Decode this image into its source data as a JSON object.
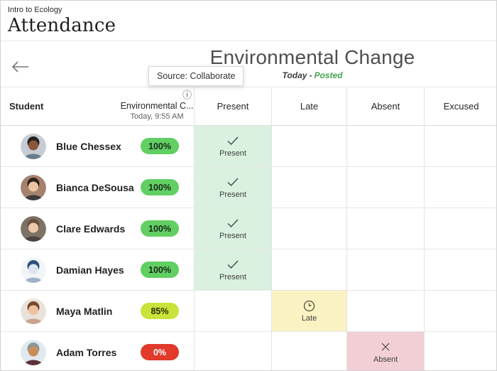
{
  "page": {
    "course": "Intro to Ecology",
    "title": "Attendance"
  },
  "meeting": {
    "title": "Environmental Change",
    "date_label": "Today",
    "separator": "-",
    "status_label": "Posted",
    "tooltip": "Source: Collaborate"
  },
  "table": {
    "student_header": "Student",
    "session": {
      "name": "Environmental C...",
      "date": "Today, 9:55 AM",
      "info_icon": "ⓘ"
    },
    "columns": [
      {
        "key": "present",
        "label": "Present"
      },
      {
        "key": "late",
        "label": "Late"
      },
      {
        "key": "absent",
        "label": "Absent"
      },
      {
        "key": "excused",
        "label": "Excused"
      }
    ]
  },
  "statuses": {
    "present": {
      "label": "Present",
      "cell_bg": "#d9f1de",
      "icon": "check",
      "icon_color": "#474747"
    },
    "late": {
      "label": "Late",
      "cell_bg": "#fbf2c4",
      "icon": "clock",
      "icon_color": "#55503a"
    },
    "absent": {
      "label": "Absent",
      "cell_bg": "#f1cfd4",
      "icon": "x",
      "icon_color": "#474747"
    }
  },
  "students": [
    {
      "name": "Blue Chessex",
      "score": "100%",
      "pill_bg": "#61cf62",
      "pill_fg": "#1c2b1c",
      "status": "present",
      "avatar": {
        "bg": "#c7ccd4",
        "skin": "#8a573a",
        "hair": "#242021",
        "shirt": "#6b7b8c"
      }
    },
    {
      "name": "Bianca DeSousa",
      "score": "100%",
      "pill_bg": "#61cf62",
      "pill_fg": "#1c2b1c",
      "status": "present",
      "avatar": {
        "bg": "#a4826e",
        "skin": "#eec5a3",
        "hair": "#31231c",
        "shirt": "#3c3a3a"
      }
    },
    {
      "name": "Clare Edwards",
      "score": "100%",
      "pill_bg": "#61cf62",
      "pill_fg": "#1c2b1c",
      "status": "present",
      "avatar": {
        "bg": "#7e7265",
        "skin": "#edc9a9",
        "hair": "#68503c",
        "shirt": "#4a4440"
      }
    },
    {
      "name": "Damian Hayes",
      "score": "100%",
      "pill_bg": "#61cf62",
      "pill_fg": "#1c2b1c",
      "status": "present",
      "avatar": {
        "bg": "#f2f5f8",
        "skin": "#dce4ee",
        "hair": "#2e4e7e",
        "shirt": "#9fb3c8"
      }
    },
    {
      "name": "Maya Matlin",
      "score": "85%",
      "pill_bg": "#cbe23b",
      "pill_fg": "#2b3300",
      "status": "late",
      "avatar": {
        "bg": "#e9e2da",
        "skin": "#eec3a0",
        "hair": "#7a4a2e",
        "shirt": "#caa28e"
      }
    },
    {
      "name": "Adam Torres",
      "score": "0%",
      "pill_bg": "#e1392a",
      "pill_fg": "#ffffff",
      "status": "absent",
      "avatar": {
        "bg": "#dfe9ee",
        "skin": "#c98e58",
        "hair": "#8d9698",
        "shirt": "#5e3038"
      }
    }
  ]
}
